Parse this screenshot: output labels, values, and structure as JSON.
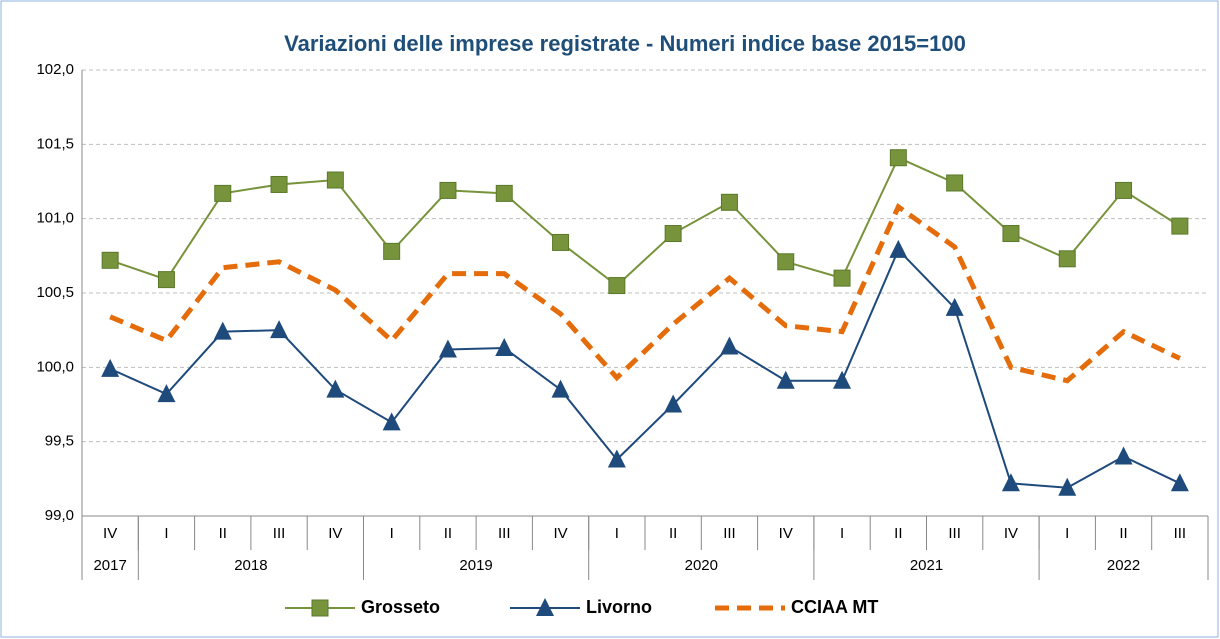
{
  "chart_data": {
    "type": "line",
    "title": "Variazioni delle imprese registrate - Numeri indice base 2015=100",
    "categories": [
      "IV",
      "I",
      "II",
      "III",
      "IV",
      "I",
      "II",
      "III",
      "IV",
      "I",
      "II",
      "III",
      "IV",
      "I",
      "II",
      "III",
      "IV",
      "I",
      "II",
      "III"
    ],
    "years": [
      "2017",
      "2018",
      "2019",
      "2020",
      "2021",
      "2022"
    ],
    "year_spans": [
      1,
      4,
      4,
      4,
      4,
      3
    ],
    "series": [
      {
        "name": "Grosseto",
        "color": "#77933c",
        "marker": "square",
        "values": [
          100.72,
          100.59,
          101.17,
          101.23,
          101.26,
          100.78,
          101.19,
          101.17,
          100.84,
          100.55,
          100.9,
          101.11,
          100.71,
          100.6,
          101.41,
          101.24,
          100.9,
          100.73,
          101.19,
          100.95
        ]
      },
      {
        "name": "Livorno",
        "color": "#1f4a7c",
        "marker": "triangle",
        "values": [
          99.99,
          99.82,
          100.24,
          100.25,
          99.85,
          99.63,
          100.12,
          100.13,
          99.85,
          99.38,
          99.75,
          100.14,
          99.91,
          99.91,
          100.79,
          100.4,
          99.22,
          99.19,
          99.4,
          99.22
        ]
      },
      {
        "name": "CCIAA MT",
        "color": "#e46c0a",
        "dash": true,
        "values": [
          100.34,
          100.18,
          100.67,
          100.71,
          100.52,
          100.18,
          100.63,
          100.63,
          100.36,
          99.93,
          100.29,
          100.6,
          100.28,
          100.24,
          101.08,
          100.81,
          100.0,
          99.91,
          100.24,
          100.06
        ]
      }
    ],
    "ylim": [
      99,
      102
    ],
    "yticks": [
      {
        "value": 99,
        "label": "99,0"
      },
      {
        "value": 99.5,
        "label": "99,5"
      },
      {
        "value": 100,
        "label": "100,0"
      },
      {
        "value": 100.5,
        "label": "100,5"
      },
      {
        "value": 101,
        "label": "101,0"
      },
      {
        "value": 101.5,
        "label": "101,5"
      },
      {
        "value": 102,
        "label": "102,0"
      }
    ],
    "grid": true
  }
}
